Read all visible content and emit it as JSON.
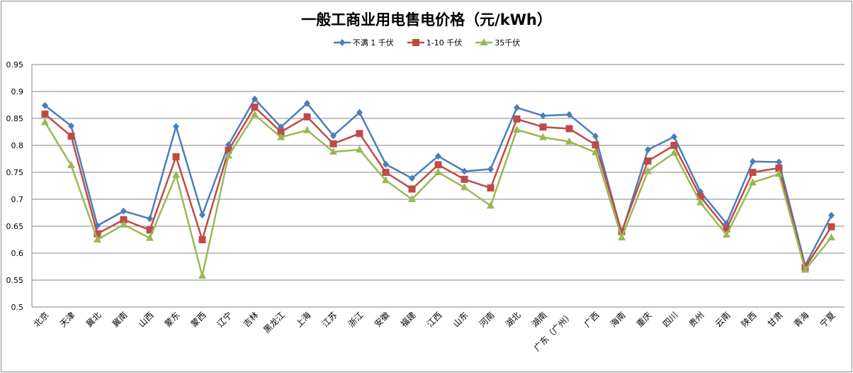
{
  "chart_data": {
    "type": "line",
    "title": "一般工商业用电售电价格（元/kWh）",
    "xlabel": "",
    "ylabel": "",
    "ylim": [
      0.5,
      0.95
    ],
    "yticks": [
      "0.5",
      "0.55",
      "0.6",
      "0.65",
      "0.7",
      "0.75",
      "0.8",
      "0.85",
      "0.9",
      "0.95"
    ],
    "grid": true,
    "legend": "top-center",
    "categories": [
      "北京",
      "天津",
      "冀北",
      "冀南",
      "山西",
      "蒙东",
      "蒙西",
      "辽宁",
      "吉林",
      "黑龙江",
      "上海",
      "江苏",
      "浙江",
      "安徽",
      "福建",
      "江西",
      "山东",
      "河南",
      "湖北",
      "湖南",
      "广东（广州）",
      "广西",
      "海南",
      "重庆",
      "四川",
      "贵州",
      "云南",
      "陕西",
      "甘肃",
      "青海",
      "宁夏"
    ],
    "series": [
      {
        "name": "不满 1 千伏",
        "color": "#4a7ebb",
        "marker": "diamond",
        "values": [
          0.874,
          0.836,
          0.651,
          0.678,
          0.664,
          0.835,
          0.671,
          0.801,
          0.886,
          0.834,
          0.878,
          0.818,
          0.861,
          0.765,
          0.739,
          0.78,
          0.752,
          0.756,
          0.87,
          0.855,
          0.857,
          0.817,
          0.637,
          0.792,
          0.816,
          0.714,
          0.655,
          0.77,
          0.769,
          0.577,
          0.67
        ]
      },
      {
        "name": "1-10 千伏",
        "color": "#be4b48",
        "marker": "square",
        "values": [
          0.858,
          0.817,
          0.636,
          0.662,
          0.643,
          0.779,
          0.625,
          0.791,
          0.871,
          0.825,
          0.853,
          0.803,
          0.822,
          0.75,
          0.719,
          0.764,
          0.737,
          0.721,
          0.849,
          0.834,
          0.831,
          0.801,
          0.64,
          0.771,
          0.8,
          0.705,
          0.645,
          0.75,
          0.758,
          0.573,
          0.649
        ]
      },
      {
        "name": "35千伏",
        "color": "#98b954",
        "marker": "triangle",
        "values": [
          0.843,
          0.763,
          0.625,
          0.653,
          0.628,
          0.745,
          0.558,
          0.781,
          0.857,
          0.815,
          0.828,
          0.788,
          0.792,
          0.735,
          0.7,
          0.75,
          0.722,
          0.688,
          0.829,
          0.815,
          0.807,
          0.787,
          0.629,
          0.752,
          0.786,
          0.694,
          0.634,
          0.731,
          0.747,
          0.569,
          0.629
        ]
      }
    ]
  }
}
